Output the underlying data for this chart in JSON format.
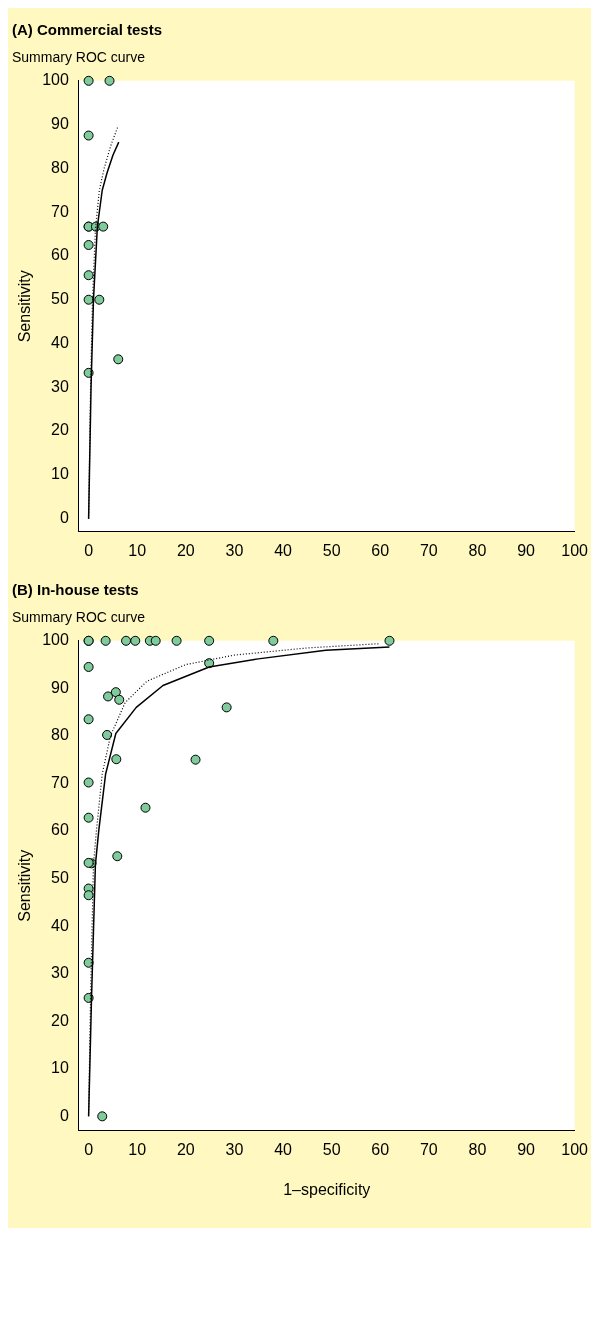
{
  "chart_data": [
    {
      "type": "scatter",
      "title": "(A) Commercial tests",
      "subtitle": "Summary ROC curve",
      "ylabel": "Sensitivity",
      "xlim": [
        -2,
        100
      ],
      "ylim": [
        -3,
        100
      ],
      "xticks": [
        0,
        10,
        20,
        30,
        40,
        50,
        60,
        70,
        80,
        90,
        100
      ],
      "yticks": [
        0,
        10,
        20,
        30,
        40,
        50,
        60,
        70,
        80,
        90,
        100
      ],
      "grid": false,
      "legend": false,
      "series": [
        {
          "type": "scatter",
          "marker": "circle",
          "color": "#7fcb9b",
          "x": [
            0,
            4.3,
            0,
            0,
            0,
            1.5,
            3,
            0,
            0,
            0,
            2.2,
            6.1,
            0
          ],
          "values": [
            100,
            100,
            87.5,
            66.7,
            66.7,
            66.7,
            66.7,
            62.5,
            55.6,
            50,
            50,
            36.4,
            33.3
          ]
        },
        {
          "type": "line",
          "color": "#000000",
          "line_style": "solid",
          "x": [
            0,
            0.5,
            1,
            1.8,
            2.8,
            3.8,
            5,
            6.2
          ],
          "values": [
            0,
            30,
            50,
            66.7,
            75,
            79,
            83,
            86
          ]
        },
        {
          "type": "line",
          "color": "#000000",
          "line_style": "dotted",
          "x": [
            0,
            0.4,
            0.8,
            1.4,
            2.2,
            3.2,
            4.5,
            6
          ],
          "values": [
            0,
            30,
            50,
            66,
            75,
            80,
            85,
            89.5
          ]
        }
      ]
    },
    {
      "type": "scatter",
      "title": "(B) In-house tests",
      "subtitle": "Summary ROC curve",
      "xlabel": "1–specificity",
      "ylabel": "Sensitivity",
      "xlim": [
        -2,
        100
      ],
      "ylim": [
        -3,
        100
      ],
      "xticks": [
        0,
        10,
        20,
        30,
        40,
        50,
        60,
        70,
        80,
        90,
        100
      ],
      "yticks": [
        0,
        10,
        20,
        30,
        40,
        50,
        60,
        70,
        80,
        90,
        100
      ],
      "grid": false,
      "legend": false,
      "series": [
        {
          "type": "scatter",
          "marker": "circle",
          "color": "#7fcb9b",
          "x": [
            0,
            0,
            3.5,
            7.7,
            9.6,
            12.6,
            13.8,
            18.1,
            24.8,
            38,
            61.9,
            0,
            4,
            5.6,
            6.3,
            24.8,
            0,
            28.4,
            3.8,
            5.7,
            22,
            0,
            0,
            11.7,
            5.9,
            0.6,
            0,
            0,
            0,
            0,
            0,
            2.8
          ],
          "values": [
            100,
            100,
            100,
            100,
            100,
            100,
            100,
            100,
            100,
            100,
            100,
            94.5,
            88.3,
            89.2,
            87.6,
            95.3,
            83.5,
            86,
            80.2,
            75.1,
            75,
            70.2,
            62.8,
            64.9,
            54.7,
            53.2,
            53.3,
            47.9,
            46.5,
            32.3,
            24.9,
            0
          ]
        },
        {
          "type": "line",
          "color": "#000000",
          "line_style": "solid",
          "x": [
            0,
            0.6,
            1.4,
            2.1,
            3.5,
            5.6,
            9.8,
            15.3,
            24.8,
            34.9,
            48.8,
            61.9
          ],
          "values": [
            0,
            25,
            53,
            60.2,
            72,
            80.5,
            86,
            90.6,
            94.5,
            96.2,
            98,
            98.7
          ]
        },
        {
          "type": "line",
          "color": "#000000",
          "line_style": "dotted",
          "x": [
            0,
            0.4,
            1,
            1.6,
            2.8,
            4.5,
            7.5,
            12,
            20,
            30,
            45,
            60
          ],
          "values": [
            0,
            25,
            53,
            60,
            72,
            80,
            87,
            91.5,
            95,
            97,
            98.5,
            99.4
          ]
        }
      ]
    }
  ]
}
